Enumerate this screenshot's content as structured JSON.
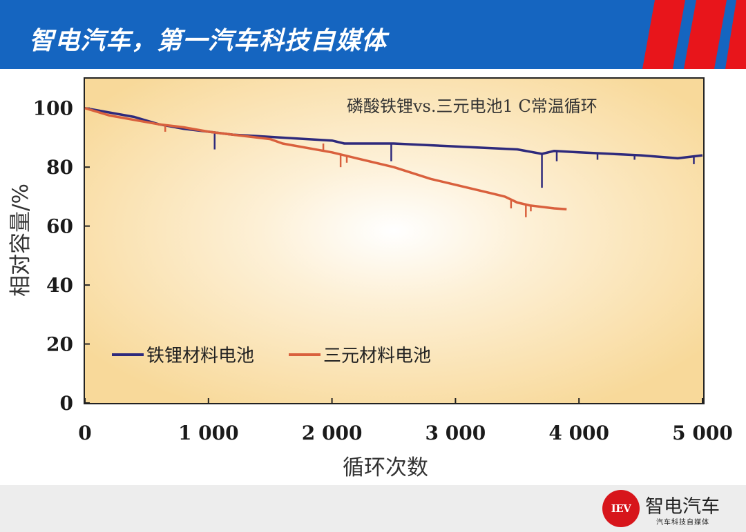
{
  "header": {
    "title": "智电汽车，第一汽车科技自媒体",
    "bg_color": "#1565c0",
    "stripe_color": "#e8151b"
  },
  "brand": {
    "logo_text": "IEV",
    "name": "智电汽车",
    "subtitle": "汽车科技自媒体",
    "logo_color": "#d7151b"
  },
  "chart_data": {
    "type": "line",
    "annotation": "磷酸铁锂vs.三元电池1 C常温循环",
    "xlabel": "循环次数",
    "ylabel": "相对容量/%",
    "xlim": [
      0,
      5000
    ],
    "ylim": [
      0,
      110
    ],
    "x_ticks": [
      0,
      1000,
      2000,
      3000,
      4000,
      5000
    ],
    "x_tick_labels": [
      "0",
      "1 000",
      "2 000",
      "3 000",
      "4 000",
      "5 000"
    ],
    "y_ticks": [
      0,
      20,
      40,
      60,
      80,
      100
    ],
    "y_tick_labels": [
      "0",
      "20",
      "40",
      "60",
      "80",
      "100"
    ],
    "grid": false,
    "legend_position": "lower-left",
    "plot_background": "#fbe6bd",
    "series": [
      {
        "name": "铁锂材料电池",
        "color": "#2e2a7c",
        "points": [
          [
            0,
            100
          ],
          [
            200,
            98.5
          ],
          [
            400,
            97
          ],
          [
            600,
            94.5
          ],
          [
            800,
            93
          ],
          [
            1000,
            92
          ],
          [
            1200,
            91
          ],
          [
            1400,
            90.5
          ],
          [
            1600,
            90
          ],
          [
            1800,
            89.5
          ],
          [
            2000,
            89
          ],
          [
            2100,
            88
          ],
          [
            2500,
            88
          ],
          [
            3000,
            87
          ],
          [
            3500,
            86
          ],
          [
            3700,
            84.5
          ],
          [
            3800,
            85.5
          ],
          [
            4000,
            85
          ],
          [
            4500,
            84
          ],
          [
            4800,
            83
          ],
          [
            5000,
            84
          ]
        ],
        "dips": [
          [
            1050,
            86
          ],
          [
            2480,
            82
          ],
          [
            3700,
            73
          ],
          [
            3820,
            82
          ],
          [
            4150,
            82.5
          ],
          [
            4450,
            82.5
          ],
          [
            4930,
            81
          ]
        ]
      },
      {
        "name": "三元材料电池",
        "color": "#d9603d",
        "points": [
          [
            0,
            100
          ],
          [
            200,
            97.5
          ],
          [
            400,
            96
          ],
          [
            600,
            94.5
          ],
          [
            800,
            93.5
          ],
          [
            1000,
            92
          ],
          [
            1200,
            91
          ],
          [
            1500,
            89.5
          ],
          [
            1600,
            88
          ],
          [
            2000,
            85
          ],
          [
            2200,
            83
          ],
          [
            2500,
            80
          ],
          [
            2800,
            76
          ],
          [
            3000,
            74
          ],
          [
            3300,
            71
          ],
          [
            3400,
            70
          ],
          [
            3500,
            68
          ],
          [
            3600,
            67
          ],
          [
            3800,
            66
          ],
          [
            3900,
            65.7
          ]
        ],
        "dips": [
          [
            650,
            92
          ],
          [
            1930,
            88
          ],
          [
            2070,
            80
          ],
          [
            2120,
            81.5
          ],
          [
            3450,
            66
          ],
          [
            3570,
            63
          ],
          [
            3610,
            65
          ]
        ]
      }
    ]
  }
}
